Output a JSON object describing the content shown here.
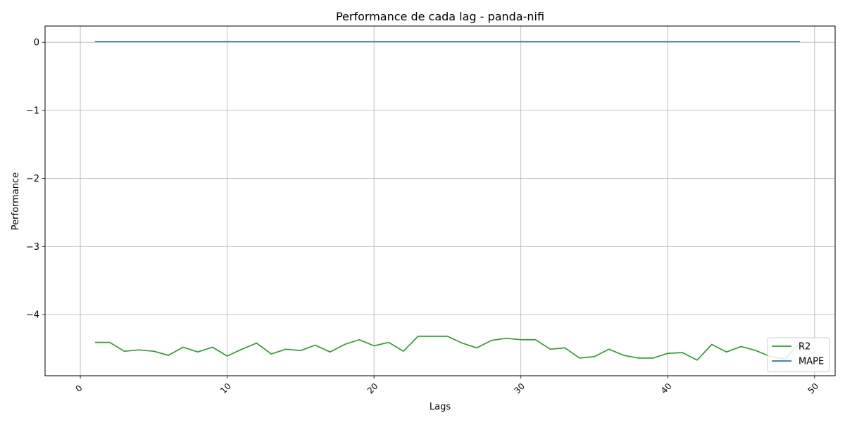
{
  "chart_data": {
    "type": "line",
    "title": "Performance de cada lag - panda-nifi",
    "xlabel": "Lags",
    "ylabel": "Performance",
    "xlim": [
      -2.4,
      51.4
    ],
    "ylim": [
      -4.9,
      0.24
    ],
    "xticks": [
      0,
      10,
      20,
      30,
      40,
      50
    ],
    "yticks": [
      0,
      -1,
      -2,
      -3,
      -4
    ],
    "xtick_labels": [
      "0",
      "10",
      "20",
      "30",
      "40",
      "50"
    ],
    "ytick_labels": [
      "0",
      "−1",
      "−2",
      "−3",
      "−4"
    ],
    "grid": true,
    "legend_position": "lower-right",
    "x": [
      1,
      2,
      3,
      4,
      5,
      6,
      7,
      8,
      9,
      10,
      11,
      12,
      13,
      14,
      15,
      16,
      17,
      18,
      19,
      20,
      21,
      22,
      23,
      24,
      25,
      26,
      27,
      28,
      29,
      30,
      31,
      32,
      33,
      34,
      35,
      36,
      37,
      38,
      39,
      40,
      41,
      42,
      43,
      44,
      45,
      46,
      47,
      48,
      49
    ],
    "series": [
      {
        "name": "R2",
        "color": "#2ca02c",
        "values": [
          -4.41,
          -4.41,
          -4.54,
          -4.52,
          -4.54,
          -4.6,
          -4.48,
          -4.55,
          -4.48,
          -4.61,
          -4.51,
          -4.42,
          -4.58,
          -4.51,
          -4.53,
          -4.45,
          -4.55,
          -4.44,
          -4.37,
          -4.46,
          -4.41,
          -4.54,
          -4.32,
          -4.32,
          -4.32,
          -4.42,
          -4.49,
          -4.38,
          -4.35,
          -4.37,
          -4.37,
          -4.51,
          -4.49,
          -4.64,
          -4.62,
          -4.51,
          -4.6,
          -4.64,
          -4.64,
          -4.57,
          -4.56,
          -4.67,
          -4.44,
          -4.55,
          -4.47,
          -4.53,
          -4.62,
          -4.65,
          -4.42
        ]
      },
      {
        "name": "MAPE",
        "color": "#1f77b4",
        "values": [
          0.01,
          0.01,
          0.01,
          0.01,
          0.01,
          0.01,
          0.01,
          0.01,
          0.01,
          0.01,
          0.01,
          0.01,
          0.01,
          0.01,
          0.01,
          0.01,
          0.01,
          0.01,
          0.01,
          0.01,
          0.01,
          0.01,
          0.01,
          0.01,
          0.01,
          0.01,
          0.01,
          0.01,
          0.01,
          0.01,
          0.01,
          0.01,
          0.01,
          0.01,
          0.01,
          0.01,
          0.01,
          0.01,
          0.01,
          0.01,
          0.01,
          0.01,
          0.01,
          0.01,
          0.01,
          0.01,
          0.01,
          0.01,
          0.01
        ]
      }
    ]
  }
}
